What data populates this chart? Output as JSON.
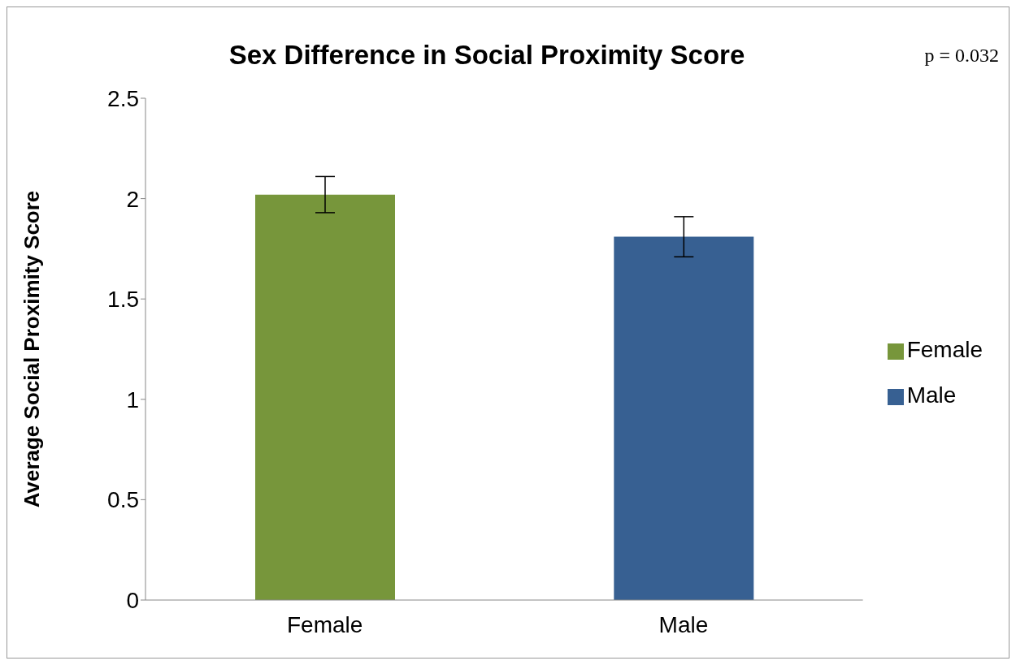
{
  "chart_data": {
    "type": "bar",
    "title": "Sex Difference in Social Proximity Score",
    "ylabel": "Average Social Proximity Score",
    "annotations": [
      "p = 0.032"
    ],
    "categories": [
      "Female",
      "Male"
    ],
    "series": [
      {
        "name": "Female",
        "color": "#77963b",
        "values": [
          2.02,
          null
        ],
        "errors": [
          0.09,
          null
        ]
      },
      {
        "name": "Male",
        "color": "#376092",
        "values": [
          null,
          1.81
        ],
        "errors": [
          null,
          0.1
        ]
      }
    ],
    "stacked": true,
    "ylim": [
      0,
      2.5
    ],
    "yticks": [
      0,
      0.5,
      1,
      1.5,
      2,
      2.5
    ],
    "grid": false,
    "legend": "right"
  }
}
